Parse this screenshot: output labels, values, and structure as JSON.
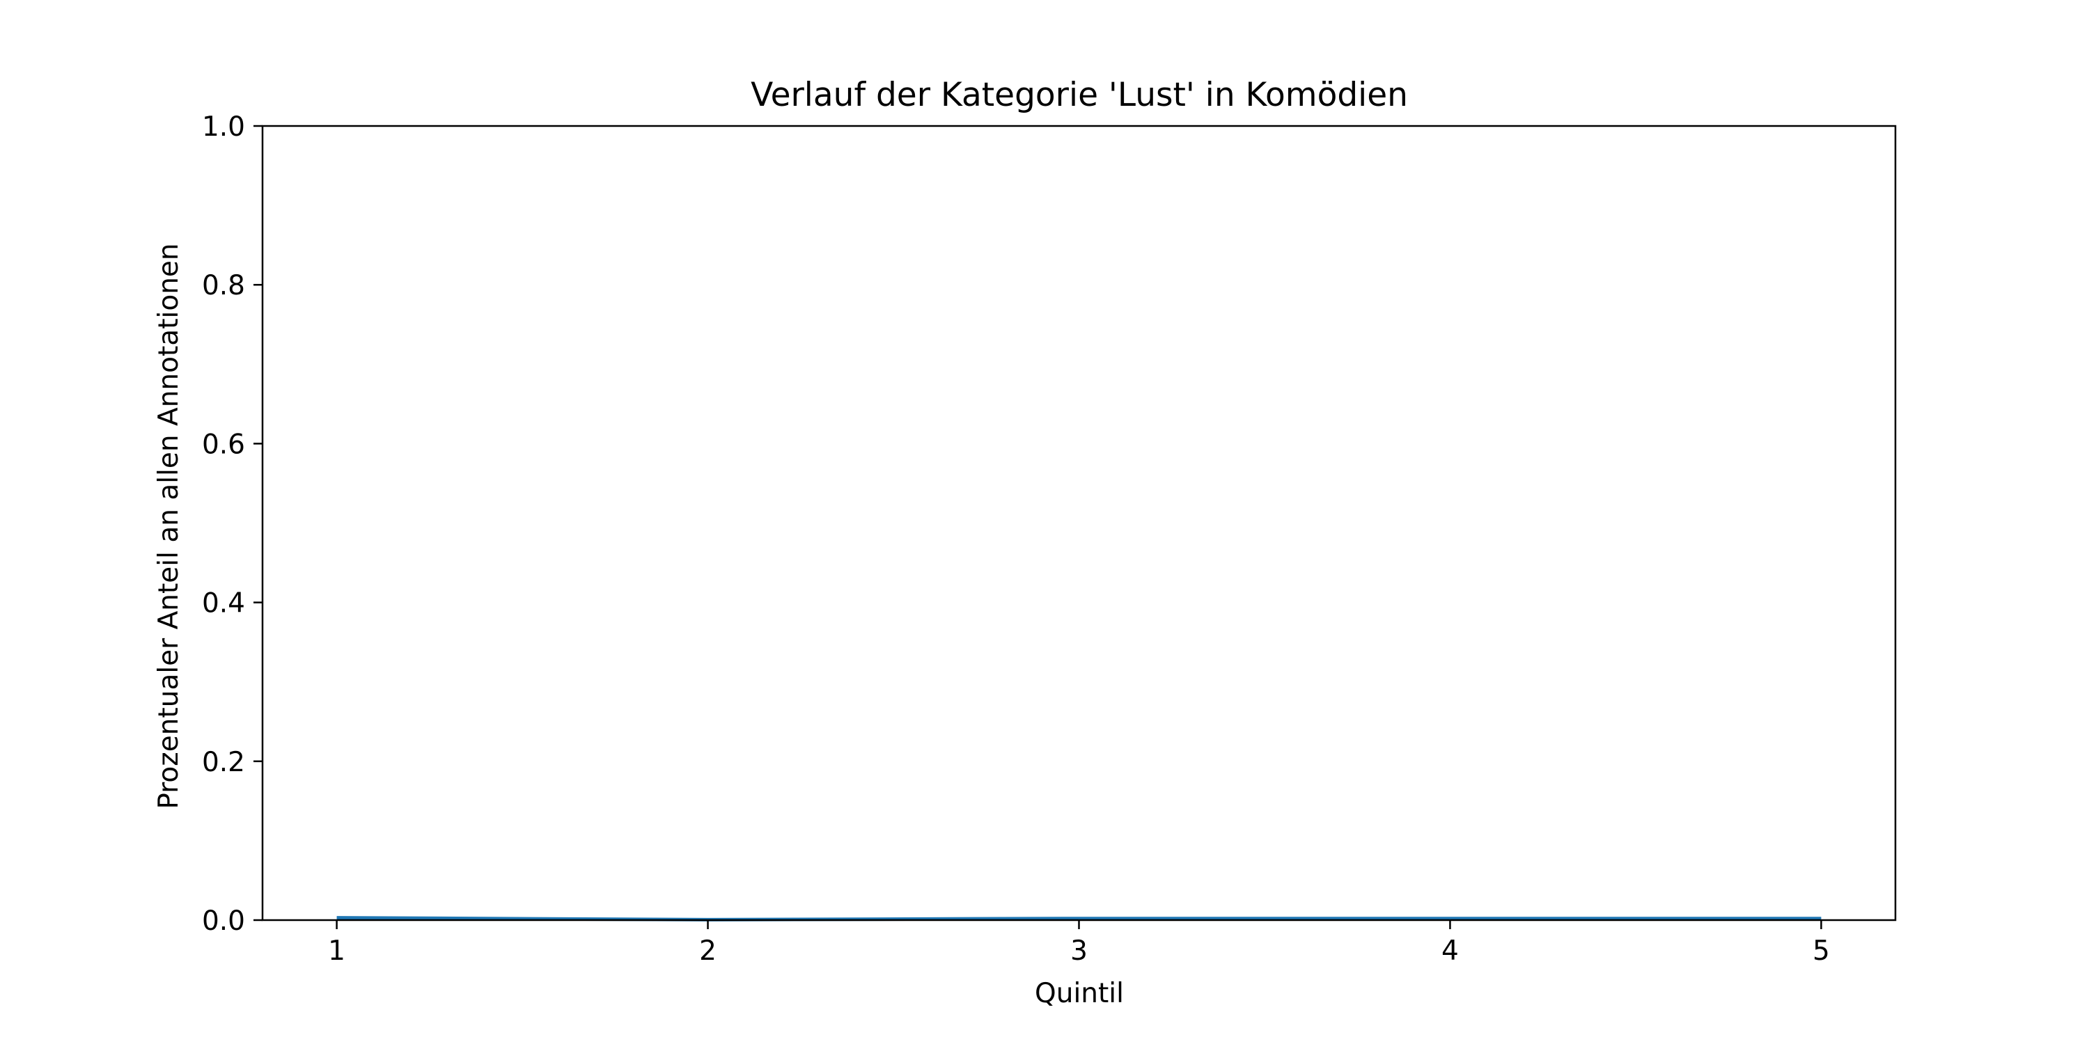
{
  "chart_data": {
    "type": "line",
    "title": "Verlauf der Kategorie 'Lust' in Komödien",
    "xlabel": "Quintil",
    "ylabel": "Prozentualer Anteil an allen Annotationen",
    "x": [
      1,
      2,
      3,
      4,
      5
    ],
    "x_ticks": [
      "1",
      "2",
      "3",
      "4",
      "5"
    ],
    "y_ticks": [
      "0.0",
      "0.2",
      "0.4",
      "0.6",
      "0.8",
      "1.0"
    ],
    "xlim": [
      0.8,
      5.2
    ],
    "ylim": [
      0.0,
      1.0
    ],
    "grid": false,
    "series": [
      {
        "values": [
          0.003,
          0.0005,
          0.002,
          0.002,
          0.002
        ],
        "color": "#1f77b4"
      }
    ]
  }
}
